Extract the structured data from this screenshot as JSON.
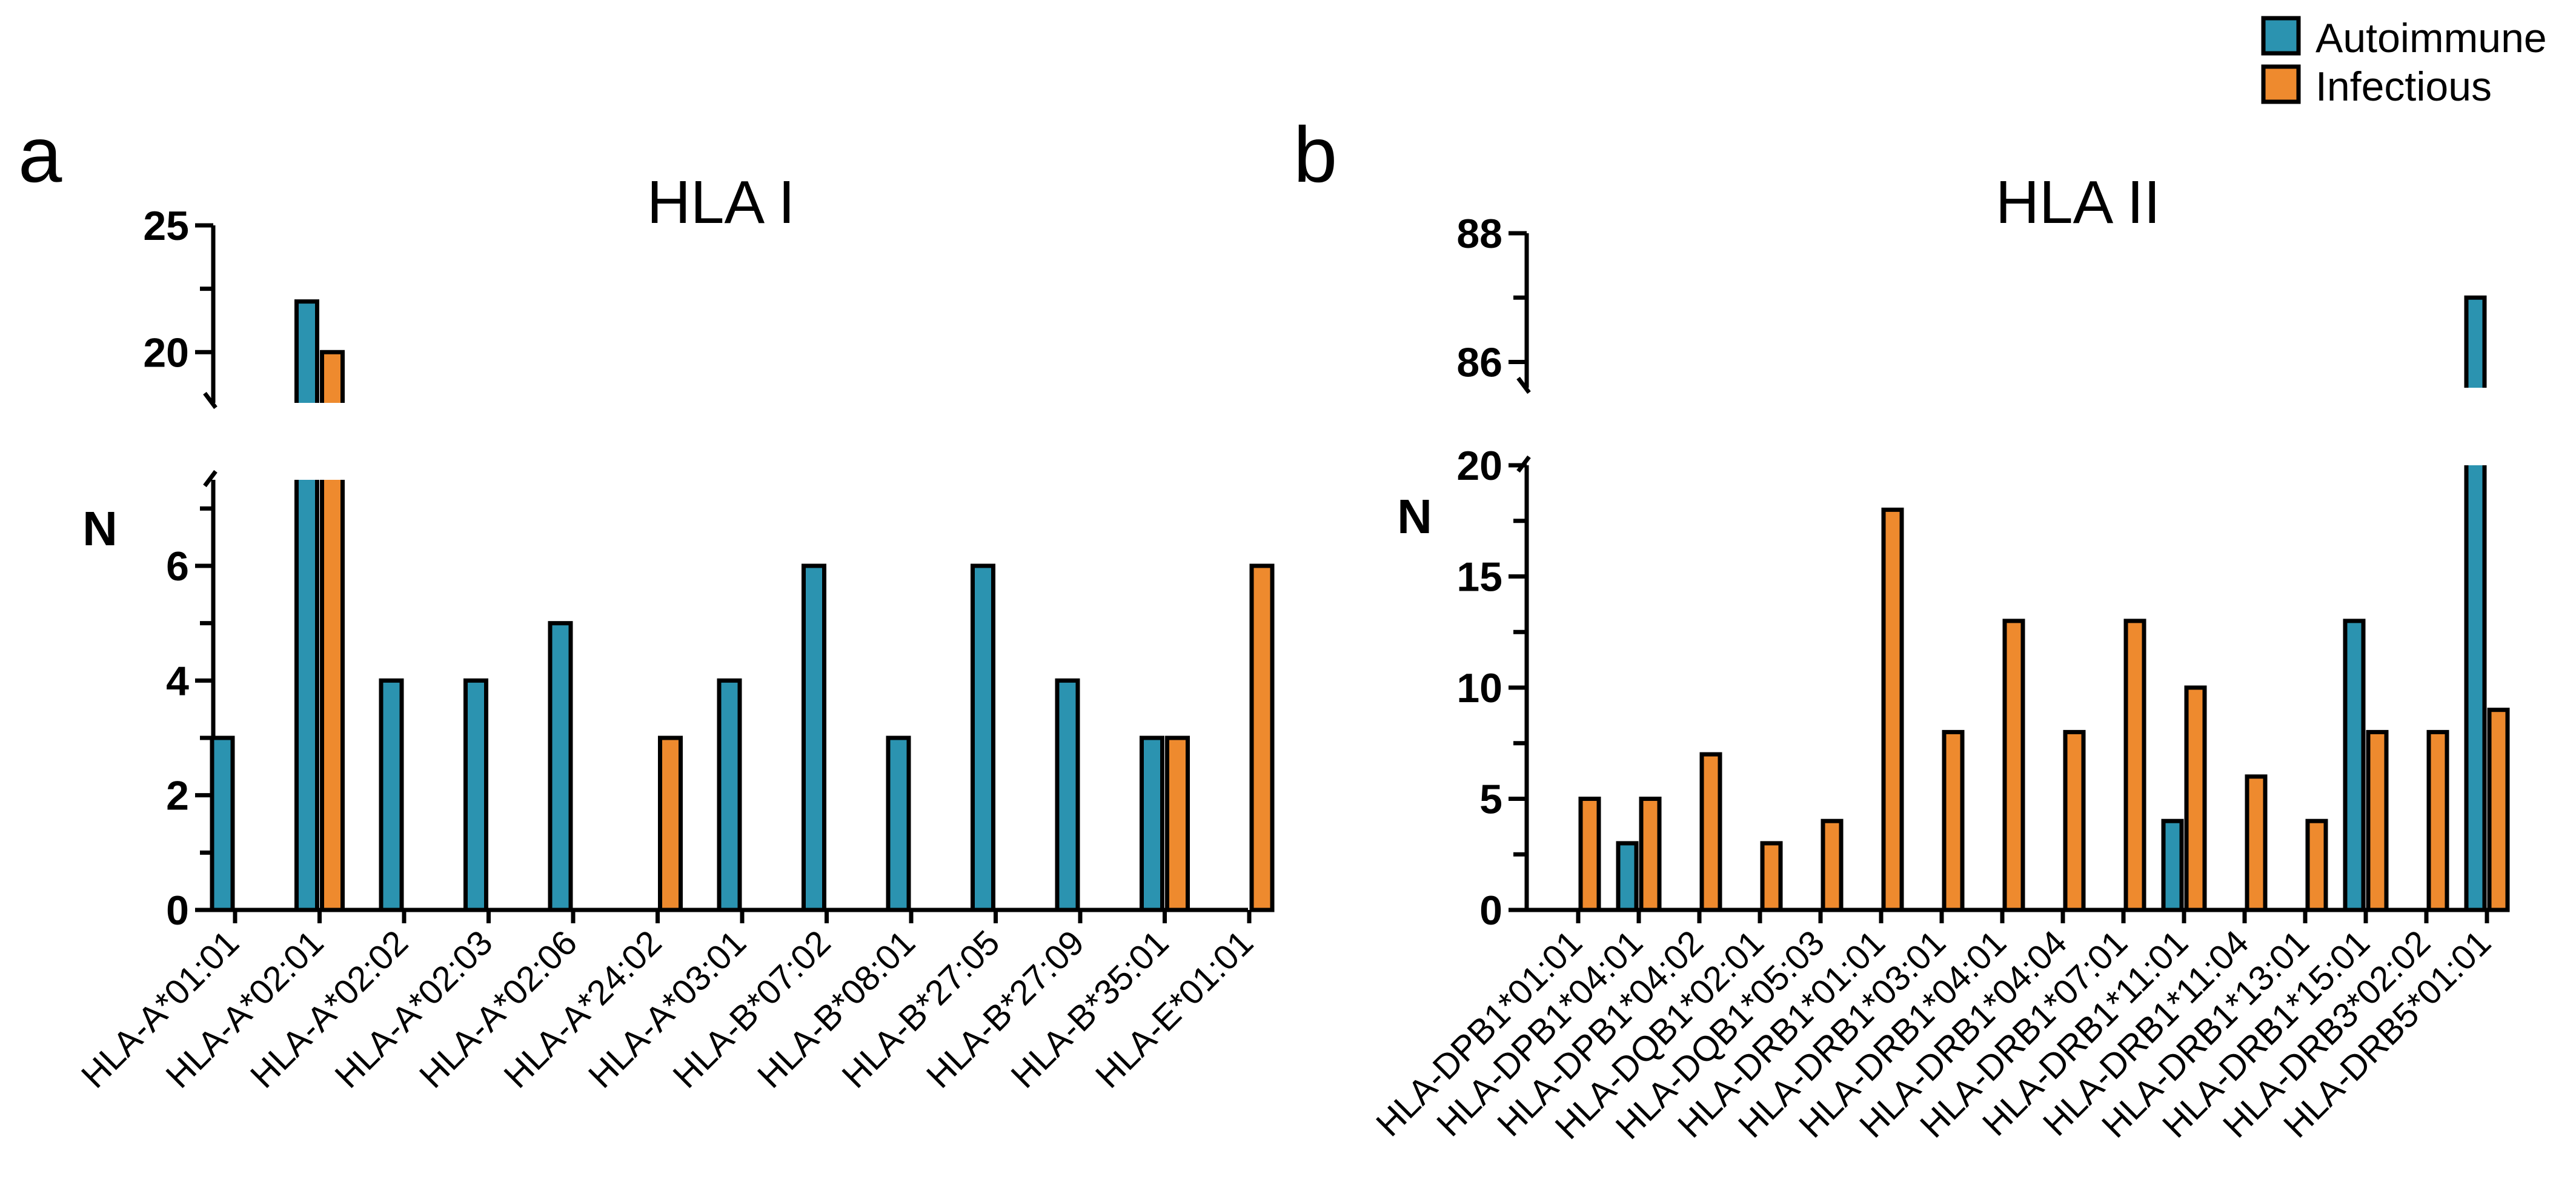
{
  "colors": {
    "autoimmune": "#2b93b0",
    "infectious": "#ee8a2e"
  },
  "legend": {
    "autoimmune_label": "Autoimmune",
    "infectious_label": "Infectious",
    "position": "top-right"
  },
  "chart_data": [
    {
      "panel": "a",
      "type": "bar",
      "title": "HLA I",
      "ylabel": "N",
      "xlabel": "",
      "broken_axis": true,
      "lower_ylim": [
        0,
        7.5
      ],
      "upper_ylim": [
        18,
        25
      ],
      "lower_yticks": [
        0,
        2,
        4,
        6
      ],
      "upper_yticks": [
        20,
        25
      ],
      "categories": [
        "HLA-A*01:01",
        "HLA-A*02:01",
        "HLA-A*02:02",
        "HLA-A*02:03",
        "HLA-A*02:06",
        "HLA-A*24:02",
        "HLA-A*03:01",
        "HLA-B*07:02",
        "HLA-B*08:01",
        "HLA-B*27:05",
        "HLA-B*27:09",
        "HLA-B*35:01",
        "HLA-E*01:01"
      ],
      "series": [
        {
          "name": "Autoimmune",
          "values": [
            3,
            22,
            4,
            4,
            5,
            0,
            4,
            6,
            3,
            6,
            4,
            3,
            0
          ]
        },
        {
          "name": "Infectious",
          "values": [
            0,
            20,
            0,
            0,
            0,
            3,
            0,
            0,
            0,
            0,
            0,
            3,
            6
          ]
        }
      ]
    },
    {
      "panel": "b",
      "type": "bar",
      "title": "HLA II",
      "ylabel": "N",
      "xlabel": "",
      "broken_axis": true,
      "lower_ylim": [
        0,
        20
      ],
      "upper_ylim": [
        85.6,
        88
      ],
      "lower_yticks": [
        0,
        5,
        10,
        15,
        20
      ],
      "upper_yticks": [
        86,
        88
      ],
      "categories": [
        "HLA-DPB1*01:01",
        "HLA-DPB1*04:01",
        "HLA-DPB1*04:02",
        "HLA-DQB1*02:01",
        "HLA-DQB1*05:03",
        "HLA-DRB1*01:01",
        "HLA-DRB1*03:01",
        "HLA-DRB1*04:01",
        "HLA-DRB1*04:04",
        "HLA-DRB1*07:01",
        "HLA-DRB1*11:01",
        "HLA-DRB1*11:04",
        "HLA-DRB1*13:01",
        "HLA-DRB1*15:01",
        "HLA-DRB3*02:02",
        "HLA-DRB5*01:01"
      ],
      "series": [
        {
          "name": "Autoimmune",
          "values": [
            0,
            3,
            0,
            0,
            0,
            0,
            0,
            0,
            0,
            0,
            4,
            0,
            0,
            13,
            0,
            87
          ]
        },
        {
          "name": "Infectious",
          "values": [
            5,
            5,
            7,
            3,
            4,
            18,
            8,
            13,
            8,
            13,
            10,
            6,
            4,
            8,
            8,
            9
          ]
        }
      ]
    }
  ]
}
